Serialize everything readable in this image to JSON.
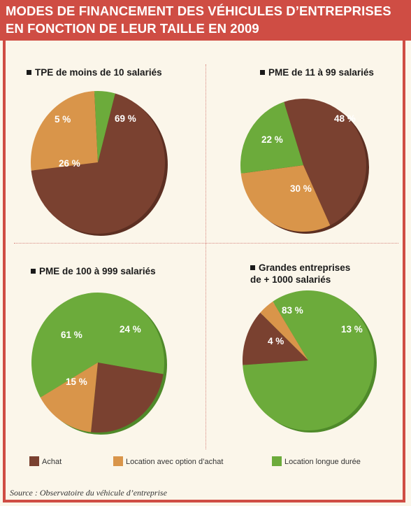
{
  "header": {
    "title_line1": "MODES DE FINANCEMENT DES VÉHICULES D’ENTREPRISES",
    "title_line2": "EN FONCTION DE LEUR TAILLE EN 2009"
  },
  "colors": {
    "header_bg": "#cf4d44",
    "achat": "#7a4130",
    "location_option": "#d9954a",
    "location_longue": "#6cab3b"
  },
  "chart_data": [
    {
      "type": "pie",
      "title": "TPE de moins de 10 salariés",
      "slices": [
        {
          "name": "Achat",
          "value": 69,
          "label": "69 %"
        },
        {
          "name": "Location avec option d’achat",
          "value": 26,
          "label": "26 %"
        },
        {
          "name": "Location longue durée",
          "value": 5,
          "label": "5 %"
        }
      ]
    },
    {
      "type": "pie",
      "title": "PME de 11 à 99 salariés",
      "slices": [
        {
          "name": "Achat",
          "value": 48,
          "label": "48 %"
        },
        {
          "name": "Location avec option d’achat",
          "value": 30,
          "label": "30 %"
        },
        {
          "name": "Location longue durée",
          "value": 22,
          "label": "22 %"
        }
      ]
    },
    {
      "type": "pie",
      "title": "PME de 100 à 999 salariés",
      "slices": [
        {
          "name": "Achat",
          "value": 24,
          "label": "24 %"
        },
        {
          "name": "Location avec option d’achat",
          "value": 15,
          "label": "15 %"
        },
        {
          "name": "Location longue durée",
          "value": 61,
          "label": "61 %"
        }
      ]
    },
    {
      "type": "pie",
      "title_line1": "Grandes entreprises",
      "title_line2": "de + 1000 salariés",
      "slices": [
        {
          "name": "Achat",
          "value": 13,
          "label": "13 %"
        },
        {
          "name": "Location avec option d’achat",
          "value": 4,
          "label": "4 %"
        },
        {
          "name": "Location longue durée",
          "value": 83,
          "label": "83 %"
        }
      ]
    }
  ],
  "legend": [
    {
      "label": "Achat",
      "color": "#7a4130"
    },
    {
      "label": "Location avec option d’achat",
      "color": "#d9954a"
    },
    {
      "label": "Location longue durée",
      "color": "#6cab3b"
    }
  ],
  "source": "Source : Observatoire du véhicule d’entreprise"
}
